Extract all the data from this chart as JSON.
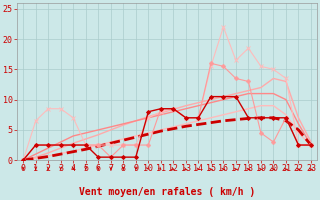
{
  "background_color": "#cce8e8",
  "grid_color": "#aacccc",
  "xlabel": "Vent moyen/en rafales ( km/h )",
  "xlabel_color": "#cc0000",
  "xlabel_fontsize": 7,
  "tick_color": "#cc0000",
  "tick_fontsize": 6,
  "xlim": [
    -0.5,
    23.5
  ],
  "ylim": [
    0,
    26
  ],
  "yticks": [
    0,
    5,
    10,
    15,
    20,
    25
  ],
  "xticks": [
    0,
    1,
    2,
    3,
    4,
    5,
    6,
    7,
    8,
    9,
    10,
    11,
    12,
    13,
    14,
    15,
    16,
    17,
    18,
    19,
    20,
    21,
    22,
    23
  ],
  "lines": [
    {
      "x": [
        0,
        1,
        2,
        3,
        4,
        5,
        6,
        7,
        8,
        9,
        10,
        11,
        12,
        13,
        14,
        15,
        16,
        17,
        18,
        19,
        20,
        21,
        22,
        23
      ],
      "y": [
        0,
        0.3,
        0.7,
        1.1,
        1.5,
        2.0,
        2.5,
        3.0,
        3.5,
        4.0,
        4.5,
        5.0,
        5.5,
        6.0,
        6.5,
        7.0,
        7.5,
        8.0,
        8.5,
        9.0,
        9.0,
        7.5,
        4.5,
        2.5
      ],
      "color": "#ffbbbb",
      "lw": 1.0,
      "marker": null,
      "zorder": 2
    },
    {
      "x": [
        0,
        1,
        2,
        3,
        4,
        5,
        6,
        7,
        8,
        9,
        10,
        11,
        12,
        13,
        14,
        15,
        16,
        17,
        18,
        19,
        20,
        21,
        22,
        23
      ],
      "y": [
        0,
        0.5,
        1.2,
        2.0,
        2.8,
        3.5,
        4.2,
        5.0,
        5.8,
        6.5,
        7.2,
        7.8,
        8.4,
        9.0,
        9.5,
        10.0,
        10.5,
        11.0,
        11.5,
        12.0,
        13.5,
        13.0,
        7.0,
        3.0
      ],
      "color": "#ffaaaa",
      "lw": 1.0,
      "marker": null,
      "zorder": 2
    },
    {
      "x": [
        0,
        1,
        2,
        3,
        4,
        5,
        6,
        7,
        8,
        9,
        10,
        11,
        12,
        13,
        14,
        15,
        16,
        17,
        18,
        19,
        20,
        21,
        22,
        23
      ],
      "y": [
        0,
        0.3,
        0.6,
        1.0,
        1.4,
        1.8,
        2.3,
        2.8,
        3.3,
        3.8,
        4.3,
        4.8,
        5.2,
        5.6,
        5.9,
        6.2,
        6.5,
        6.7,
        6.9,
        7.0,
        7.0,
        6.5,
        5.0,
        2.5
      ],
      "color": "#cc0000",
      "lw": 2.0,
      "linestyle": "--",
      "marker": null,
      "zorder": 3
    },
    {
      "x": [
        0,
        1,
        2,
        3,
        4,
        5,
        6,
        7,
        8,
        9,
        10,
        11,
        12,
        13,
        14,
        15,
        16,
        17,
        18,
        19,
        20,
        21,
        22,
        23
      ],
      "y": [
        0,
        1.0,
        2.0,
        3.0,
        4.0,
        4.5,
        5.0,
        5.5,
        6.0,
        6.5,
        7.0,
        7.5,
        8.0,
        8.5,
        9.0,
        9.5,
        10.0,
        10.5,
        11.0,
        11.0,
        11.0,
        10.0,
        6.0,
        2.5
      ],
      "color": "#ff8888",
      "lw": 1.0,
      "marker": null,
      "zorder": 2
    },
    {
      "x": [
        0,
        1,
        2,
        3,
        4,
        5,
        6,
        7,
        8,
        9,
        10,
        11,
        12,
        13,
        14,
        15,
        16,
        17,
        18,
        19,
        20,
        21,
        22,
        23
      ],
      "y": [
        0,
        6.5,
        8.5,
        8.5,
        7.0,
        2.5,
        2.5,
        2.5,
        2.5,
        2.5,
        7.0,
        8.0,
        8.5,
        7.0,
        7.0,
        15.5,
        22.0,
        16.5,
        18.5,
        15.5,
        15.0,
        13.5,
        2.5,
        2.5
      ],
      "color": "#ffbbbb",
      "lw": 0.8,
      "marker": "x",
      "markersize": 3,
      "zorder": 4
    },
    {
      "x": [
        0,
        1,
        2,
        3,
        4,
        5,
        6,
        7,
        8,
        9,
        10,
        11,
        12,
        13,
        14,
        15,
        16,
        17,
        18,
        19,
        20,
        21,
        22,
        23
      ],
      "y": [
        0,
        2.5,
        2.5,
        2.5,
        2.5,
        2.5,
        0.5,
        0.5,
        0.5,
        0.5,
        8.0,
        8.5,
        8.5,
        7.0,
        7.0,
        10.5,
        10.5,
        10.5,
        7.0,
        7.0,
        7.0,
        7.0,
        2.5,
        2.5
      ],
      "color": "#cc0000",
      "lw": 1.0,
      "marker": "D",
      "markersize": 2,
      "zorder": 5
    },
    {
      "x": [
        0,
        1,
        2,
        3,
        4,
        5,
        6,
        7,
        8,
        9,
        10,
        11,
        12,
        13,
        14,
        15,
        16,
        17,
        18,
        19,
        20,
        21,
        22,
        23
      ],
      "y": [
        0,
        2.5,
        2.5,
        2.5,
        2.5,
        2.5,
        2.5,
        0.5,
        2.5,
        2.5,
        2.5,
        8.5,
        8.5,
        7.0,
        7.0,
        16.0,
        15.5,
        13.5,
        13.0,
        4.5,
        3.0,
        7.0,
        2.5,
        2.5
      ],
      "color": "#ff9999",
      "lw": 0.8,
      "marker": "P",
      "markersize": 2.5,
      "zorder": 4
    }
  ],
  "arrow_rotations": [
    0,
    0,
    0,
    0,
    0,
    0,
    0,
    0,
    0,
    0,
    15,
    30,
    45,
    60,
    75,
    90,
    90,
    90,
    90,
    90,
    90,
    90,
    90,
    90
  ]
}
